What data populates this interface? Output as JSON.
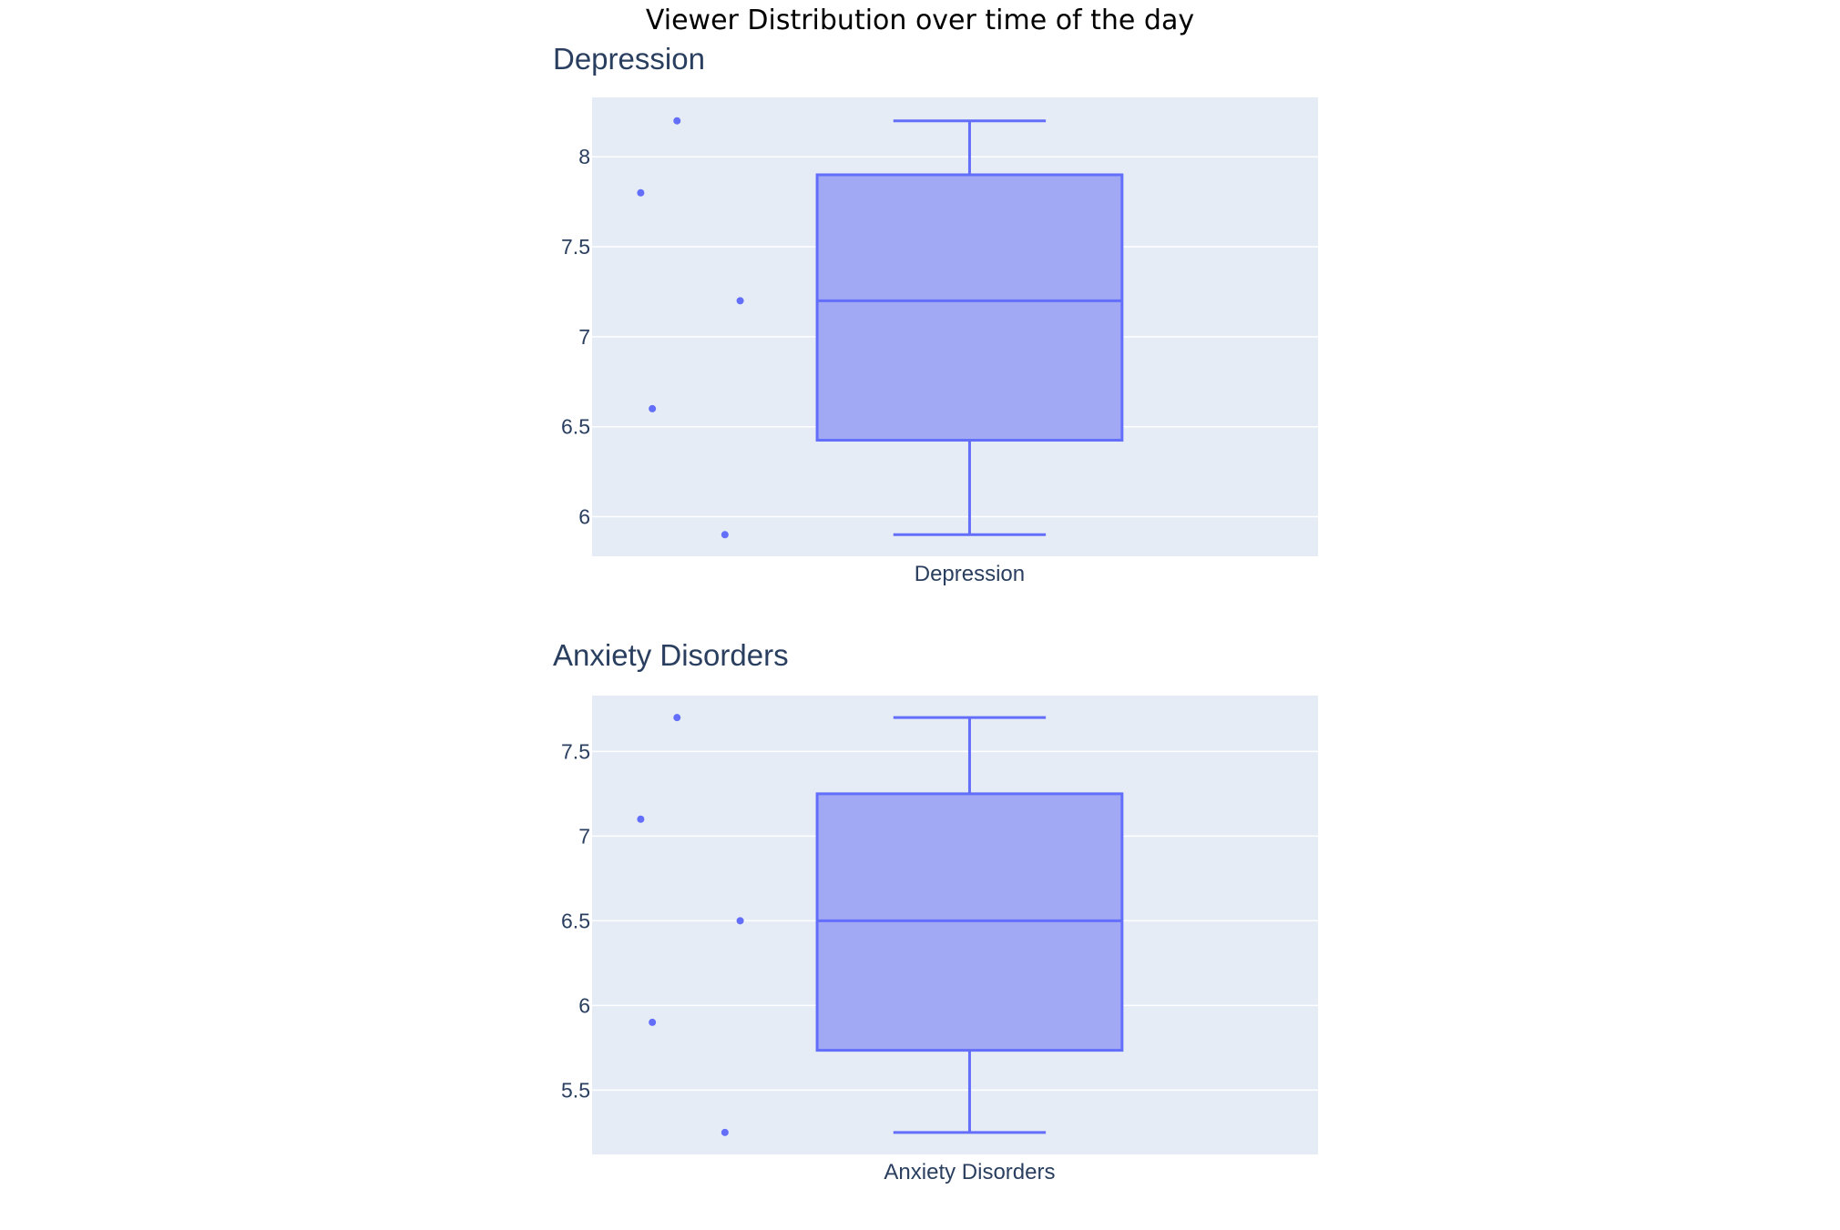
{
  "title": "Viewer Distribution over time of the day",
  "colors": {
    "plot_bg": "#e5ecf6",
    "grid": "#ffffff",
    "box_line": "#636efa",
    "box_fill": "#a1a9f5",
    "text": "#2a3f5f",
    "title_text": "#000000"
  },
  "chart_data": [
    {
      "type": "box",
      "title": "Depression",
      "category": "Depression",
      "ylim": [
        5.78,
        8.33
      ],
      "yticks": [
        6,
        6.5,
        7,
        7.5,
        8
      ],
      "grid": true,
      "points": [
        8.2,
        7.8,
        7.2,
        6.6,
        5.9
      ],
      "stats": {
        "min": 5.9,
        "q1": 6.425,
        "median": 7.2,
        "q3": 7.9,
        "max": 8.2
      }
    },
    {
      "type": "box",
      "title": "Anxiety Disorders",
      "category": "Anxiety Disorders",
      "ylim": [
        5.12,
        7.83
      ],
      "yticks": [
        5.5,
        6,
        6.5,
        7,
        7.5
      ],
      "grid": true,
      "points": [
        7.7,
        7.1,
        6.5,
        5.9,
        5.25
      ],
      "stats": {
        "min": 5.25,
        "q1": 5.735,
        "median": 6.5,
        "q3": 7.25,
        "max": 7.7
      }
    }
  ]
}
